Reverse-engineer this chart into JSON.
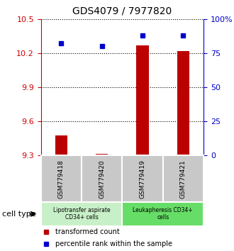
{
  "title": "GDS4079 / 7977820",
  "samples": [
    "GSM779418",
    "GSM779420",
    "GSM779419",
    "GSM779421"
  ],
  "transformed_counts": [
    9.48,
    9.315,
    10.265,
    10.22
  ],
  "percentile_ranks": [
    82,
    80,
    88,
    88
  ],
  "ylim_left": [
    9.3,
    10.5
  ],
  "yticks_left": [
    9.3,
    9.6,
    9.9,
    10.2,
    10.5
  ],
  "yticks_right": [
    0,
    25,
    50,
    75,
    100
  ],
  "bar_color": "#bb0000",
  "dot_color": "#0000cc",
  "bar_bottom": 9.3,
  "groups": [
    {
      "label": "Lipotransfer aspirate\nCD34+ cells",
      "color": "#c8f0c8"
    },
    {
      "label": "Leukapheresis CD34+\ncells",
      "color": "#66dd66"
    }
  ],
  "legend_items": [
    {
      "color": "#bb0000",
      "marker": "s",
      "label": "transformed count"
    },
    {
      "color": "#0000cc",
      "marker": "s",
      "label": "percentile rank within the sample"
    }
  ],
  "cell_type_label": "cell type",
  "ax_left_color": "#cc0000",
  "ax_right_color": "#0000cc",
  "sample_box_color": "#c8c8c8",
  "bar_width": 0.3
}
